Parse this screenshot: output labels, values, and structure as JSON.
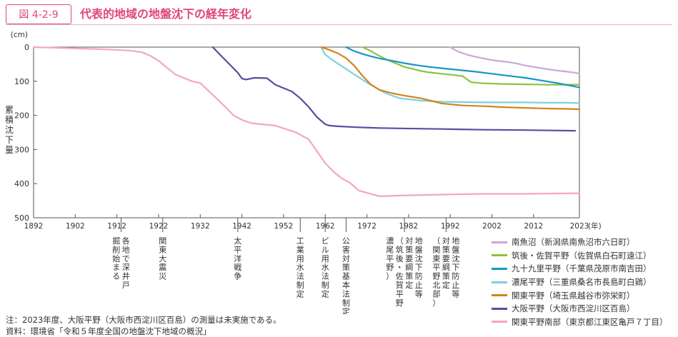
{
  "figure": {
    "number": "図 4-2-9",
    "title": "代表的地域の地盤沈下の経年変化",
    "accent_color": "#e0457b"
  },
  "notes": {
    "note": "注：2023年度、大阪平野（大阪市西淀川区百島）の測量は未実施である。",
    "source": "資料：環境省「令和５年度全国の地盤沈下地域の概況」"
  },
  "chart_data": {
    "type": "line",
    "ylabel": "累積沈下量",
    "yunit": "(cm)",
    "xunit": "(年)",
    "ylim": [
      0,
      500
    ],
    "xlim": [
      1892,
      2023
    ],
    "y_inverted": true,
    "yticks": [
      0,
      100,
      200,
      300,
      400,
      500
    ],
    "xticks": [
      1892,
      1902,
      1912,
      1922,
      1932,
      1942,
      1952,
      1962,
      1972,
      1982,
      1992,
      2002,
      2012,
      2023
    ],
    "grid": false,
    "legend_position": "bottom-right",
    "events": [
      {
        "year": 1913,
        "label": "各地で深井戸\n掘削始まる"
      },
      {
        "year": 1923,
        "label": "関東大震災"
      },
      {
        "year": 1941,
        "label": "太平洋戦争"
      },
      {
        "year": 1956,
        "label": "工業用水法制定"
      },
      {
        "year": 1962,
        "label": "ビル用水法制定"
      },
      {
        "year": 1967,
        "label": "公害対策基本法制定"
      },
      {
        "year": 1981,
        "label": "地盤沈下防止等\n対策要綱策定\n（筑後・佐賀平野\n濃尾平野）"
      },
      {
        "year": 1991,
        "label": "地盤沈下防止等\n対策要綱策定\n（関東平野北部）"
      }
    ],
    "series": [
      {
        "name": "南魚沼（新潟県南魚沼市六日町）",
        "color": "#c9a8d9",
        "x": [
          1992,
          1994,
          1996,
          1998,
          2000,
          2002,
          2004,
          2006,
          2008,
          2010,
          2012,
          2014,
          2016,
          2018,
          2020,
          2022,
          2023
        ],
        "y": [
          0,
          14,
          22,
          28,
          33,
          38,
          41,
          44,
          48,
          54,
          58,
          62,
          66,
          69,
          72,
          75,
          78
        ]
      },
      {
        "name": "筑後・佐賀平野（佐賀県白石町遠江）",
        "color": "#8ac23e",
        "x": [
          1971,
          1973,
          1975,
          1977,
          1979,
          1981,
          1983,
          1985,
          1987,
          1990,
          1993,
          1995,
          1997,
          2000,
          2005,
          2010,
          2015,
          2020,
          2023
        ],
        "y": [
          0,
          12,
          26,
          38,
          48,
          58,
          64,
          70,
          74,
          78,
          82,
          85,
          103,
          106,
          108,
          109,
          110,
          110,
          110
        ]
      },
      {
        "name": "九十九里平野（千葉県茂原市南吉田）",
        "color": "#1597c5",
        "x": [
          1967,
          1969,
          1971,
          1973,
          1975,
          1978,
          1981,
          1984,
          1987,
          1990,
          1994,
          1998,
          2002,
          2006,
          2010,
          2014,
          2018,
          2023
        ],
        "y": [
          0,
          12,
          20,
          27,
          33,
          40,
          47,
          53,
          58,
          62,
          67,
          72,
          78,
          84,
          90,
          98,
          106,
          118
        ]
      },
      {
        "name": "濃尾平野（三重県桑名市長島町白鶏）",
        "color": "#7fd0de",
        "x": [
          1961,
          1962,
          1964,
          1966,
          1968,
          1970,
          1972,
          1974,
          1976,
          1978,
          1980,
          1985,
          1990,
          1995,
          2000,
          2005,
          2010,
          2015,
          2020,
          2023
        ],
        "y": [
          0,
          22,
          40,
          56,
          72,
          88,
          104,
          118,
          132,
          142,
          150,
          157,
          160,
          161,
          162,
          162,
          162,
          163,
          163,
          164
        ]
      },
      {
        "name": "関東平野（埼玉県越谷市弥栄町）",
        "color": "#d4821e",
        "x": [
          1961,
          1963,
          1965,
          1967,
          1969,
          1971,
          1973,
          1975,
          1978,
          1981,
          1985,
          1990,
          1995,
          2000,
          2005,
          2010,
          2015,
          2020,
          2023
        ],
        "y": [
          0,
          8,
          18,
          32,
          55,
          85,
          110,
          125,
          135,
          142,
          150,
          165,
          171,
          173,
          176,
          178,
          180,
          181,
          182
        ]
      },
      {
        "name": "大阪平野（大阪市西淀川区百島）",
        "color": "#5c4ba2",
        "x": [
          1935,
          1937,
          1939,
          1941,
          1942,
          1943,
          1945,
          1948,
          1950,
          1952,
          1954,
          1956,
          1958,
          1960,
          1962,
          1963,
          1965,
          1970,
          1975,
          1980,
          1990,
          2000,
          2010,
          2022
        ],
        "y": [
          0,
          25,
          50,
          75,
          92,
          95,
          90,
          91,
          110,
          120,
          130,
          150,
          175,
          205,
          226,
          230,
          232,
          235,
          237,
          238,
          240,
          242,
          243,
          245
        ]
      },
      {
        "name": "関東平野南部（東京都江東区亀戸７丁目）",
        "color": "#f4a6c4",
        "x": [
          1892,
          1900,
          1905,
          1910,
          1915,
          1918,
          1920,
          1922,
          1924,
          1926,
          1930,
          1932,
          1935,
          1938,
          1940,
          1942,
          1944,
          1946,
          1950,
          1955,
          1958,
          1960,
          1962,
          1964,
          1966,
          1968,
          1970,
          1975,
          1980,
          1990,
          2000,
          2010,
          2023
        ],
        "y": [
          0,
          3,
          5,
          7,
          10,
          15,
          25,
          40,
          60,
          80,
          100,
          105,
          140,
          175,
          200,
          213,
          222,
          225,
          230,
          250,
          270,
          305,
          340,
          365,
          385,
          398,
          420,
          437,
          435,
          432,
          430,
          430,
          428
        ]
      }
    ]
  }
}
